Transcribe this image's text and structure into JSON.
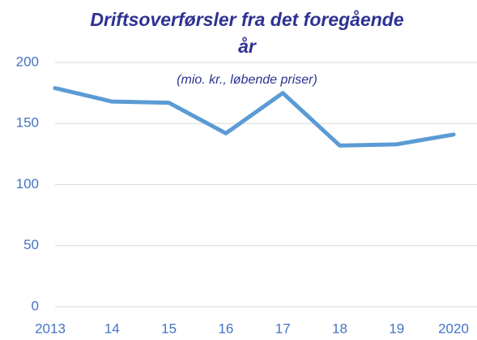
{
  "chart_data": {
    "type": "line",
    "title": "Driftsoverførsler fra det foregående år",
    "subtitle": "(mio. kr., løbende priser)",
    "categories": [
      "2013",
      "14",
      "15",
      "16",
      "17",
      "18",
      "19",
      "2020"
    ],
    "values": [
      179,
      168,
      167,
      142,
      175,
      132,
      133,
      141
    ],
    "color": "#5b9bd5",
    "ylim": [
      0,
      200
    ],
    "yticks": [
      0,
      50,
      100,
      150,
      200
    ],
    "grid": true
  }
}
